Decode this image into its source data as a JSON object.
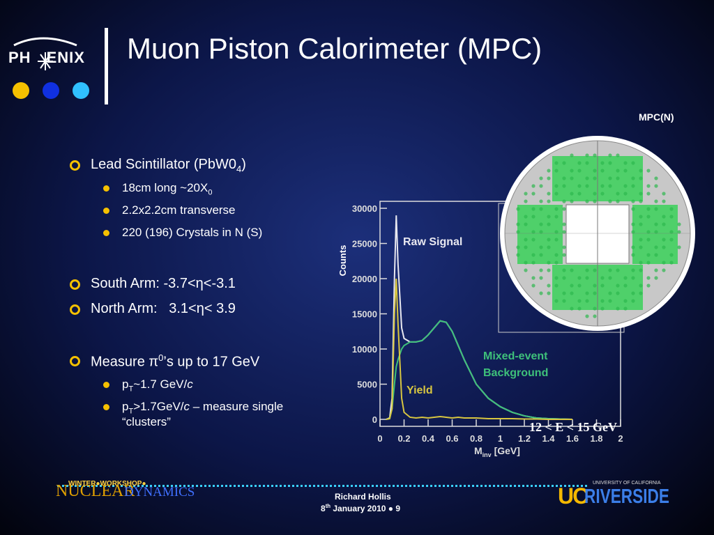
{
  "header": {
    "title": "Muon Piston Calorimeter (MPC)",
    "logo": [
      "PH",
      "ENIX"
    ]
  },
  "bullets": [
    {
      "parts": [
        "Lead Scintillator (PbW0",
        "4",
        ")"
      ],
      "sub": [
        [
          "18cm long ~20X",
          "0"
        ],
        [
          "2.2x2.2cm transverse"
        ],
        [
          "220 (196) Crystals in N (S)"
        ]
      ]
    },
    {
      "parts": [
        "South Arm: -3.7<η<-3.1"
      ]
    },
    {
      "parts": [
        "North Arm:   3.1<η< 3.9"
      ]
    },
    {
      "parts": [
        "Measure π",
        "0",
        "’s up to 17 GeV"
      ],
      "sub": [
        [
          "p",
          "T",
          "~1.7 GeV/",
          "c"
        ],
        [
          "p",
          "T",
          ">1.7GeV/",
          "c",
          " – measure single “clusters”"
        ]
      ]
    }
  ],
  "detector_label": "MPC(N)",
  "footer": {
    "workshop": "WINTER●WORKSHOP●",
    "nuclear": "NUCLEAR",
    "dynamics": "DYNAMICS",
    "speaker": "Richard Hollis",
    "date": [
      "8",
      "th",
      " January 2010 ● 9"
    ],
    "uc": "UC",
    "riverside": "RIVERSIDE",
    "university": "UNIVERSITY OF CALIFORNIA"
  },
  "chart_data": {
    "type": "line",
    "xlabel": [
      "M",
      "inv",
      " [GeV]"
    ],
    "ylabel": "Counts",
    "x": [
      0.05,
      0.08,
      0.1,
      0.12,
      0.135,
      0.15,
      0.18,
      0.2,
      0.25,
      0.3,
      0.35,
      0.4,
      0.45,
      0.5,
      0.55,
      0.6,
      0.65,
      0.7,
      0.8,
      0.9,
      1.0,
      1.1,
      1.2,
      1.3,
      1.4,
      1.5,
      1.6
    ],
    "series": [
      {
        "name": "Raw Signal",
        "color": "#e8e8f0",
        "values": [
          0,
          200,
          3000,
          20000,
          29000,
          22000,
          13000,
          11500,
          11000,
          11000,
          11200,
          12000,
          13000,
          14000,
          13800,
          12500,
          10500,
          8500,
          5000,
          3000,
          1800,
          1000,
          500,
          200,
          100,
          50,
          0
        ]
      },
      {
        "name": [
          "Mixed-event",
          "Background"
        ],
        "color": "#3ec07a",
        "values": [
          0,
          100,
          1500,
          5000,
          7500,
          8500,
          10000,
          10500,
          11000,
          11000,
          11200,
          12000,
          13000,
          14000,
          13800,
          12500,
          10500,
          8500,
          5000,
          3000,
          1800,
          1000,
          500,
          200,
          100,
          50,
          0
        ]
      },
      {
        "name": "Yield",
        "color": "#d8c640",
        "values": [
          0,
          100,
          1500,
          15000,
          20000,
          13500,
          3000,
          1000,
          300,
          200,
          300,
          200,
          300,
          400,
          300,
          200,
          300,
          200,
          200,
          100,
          100,
          100,
          50,
          50,
          0,
          0,
          0
        ]
      }
    ],
    "annotation": "12 < E < 15 GeV",
    "xlim": [
      0,
      2
    ],
    "xticks": [
      0,
      0.2,
      0.4,
      0.6,
      0.8,
      1,
      1.2,
      1.4,
      1.6,
      1.8,
      2
    ],
    "ylim": [
      0,
      30000
    ],
    "yticks": [
      0,
      5000,
      10000,
      15000,
      20000,
      25000,
      30000
    ]
  }
}
